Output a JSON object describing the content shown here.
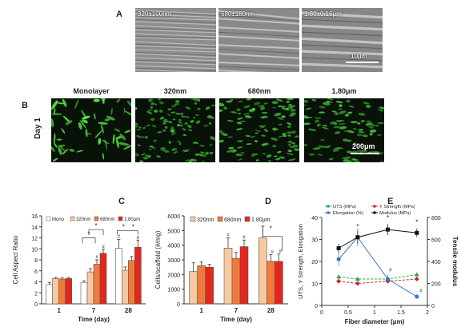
{
  "panels": {
    "A": "A",
    "B": "B",
    "C": "C",
    "D": "D",
    "E": "E"
  },
  "panel_a": {
    "images": [
      {
        "label": "320±100nm"
      },
      {
        "label": "680±180nm"
      },
      {
        "label": "1.80±0.16μm"
      }
    ],
    "scalebar": "10μm"
  },
  "panel_b": {
    "titles": [
      "Monolayer",
      "320nm",
      "680nm",
      "1.80μm"
    ],
    "row_label": "Day 1",
    "scalebar": "200μm"
  },
  "colors": {
    "mono": "#ffffff",
    "nm320": "#f6c9a0",
    "nm680": "#f07a3a",
    "um180": "#e3271d",
    "black": "#222222",
    "uts": "#2fa84f",
    "ystr": "#d62728",
    "elong": "#3a73c0",
    "modulus": "#111111"
  },
  "chart_data": [
    {
      "type": "bar",
      "ylabel": "Cell Aspect Ratio",
      "xlabel": "Time (day)",
      "ylim": [
        0,
        16
      ],
      "yticks": [
        0,
        2,
        4,
        6,
        8,
        10,
        12,
        14,
        16
      ],
      "categories": [
        "1",
        "7",
        "28"
      ],
      "legend": [
        "Mono",
        "320nm",
        "680nm",
        "1.80μm"
      ],
      "series": [
        {
          "name": "Mono",
          "values": [
            3.5,
            3.9,
            10.1
          ]
        },
        {
          "name": "320nm",
          "values": [
            4.6,
            5.8,
            6.1
          ]
        },
        {
          "name": "680nm",
          "values": [
            4.5,
            7.2,
            7.9
          ]
        },
        {
          "name": "1.80μm",
          "values": [
            4.6,
            9.2,
            10.3
          ]
        }
      ],
      "errors": [
        [
          0.4,
          0.3,
          1.6
        ],
        [
          0.2,
          0.6,
          0.6
        ],
        [
          0.2,
          0.8,
          0.7
        ],
        [
          0.2,
          0.7,
          1.3
        ]
      ],
      "marks": [
        "*",
        "*",
        "#",
        "#",
        "#",
        "#",
        "*",
        "*"
      ]
    },
    {
      "type": "bar",
      "ylabel": "Cells/scaffold (#/mg)",
      "xlabel": "Time (day)",
      "ylim": [
        0,
        6000
      ],
      "yticks": [
        0,
        1000,
        2000,
        3000,
        4000,
        5000,
        6000
      ],
      "categories": [
        "1",
        "7",
        "28"
      ],
      "legend": [
        "320nm",
        "680nm",
        "1.80μm"
      ],
      "series": [
        {
          "name": "320nm",
          "values": [
            2200,
            3800,
            4500
          ]
        },
        {
          "name": "680nm",
          "values": [
            2600,
            3100,
            2900
          ]
        },
        {
          "name": "1.80μm",
          "values": [
            2500,
            3900,
            2900
          ]
        }
      ],
      "errors": [
        [
          600,
          700,
          800
        ],
        [
          250,
          400,
          450
        ],
        [
          200,
          450,
          500
        ]
      ],
      "marks": [
        "#",
        "#",
        "#",
        "#",
        "*"
      ]
    },
    {
      "type": "line",
      "xlabel": "Fiber diameter (μm)",
      "ylabel": "UTS, Y Strength, Elongation",
      "y2label": "Tensile modulus",
      "xlim": [
        0,
        2
      ],
      "xticks": [
        0,
        0.5,
        1,
        1.5,
        2
      ],
      "ylim": [
        0,
        40
      ],
      "yticks": [
        0,
        10,
        20,
        30,
        40
      ],
      "y2lim": [
        0,
        800
      ],
      "y2ticks": [
        0,
        200,
        400,
        600,
        800
      ],
      "legend": [
        "UTS (MPa)",
        "Y Strength (MPa)",
        "Elongation (%)",
        "Modulus (MPa)"
      ],
      "series": [
        {
          "name": "UTS (MPa)",
          "axis": "left",
          "x": [
            0.32,
            0.68,
            1.25,
            1.8
          ],
          "y": [
            13,
            12,
            12,
            14
          ],
          "errors": [
            1,
            1,
            1,
            1
          ]
        },
        {
          "name": "Y Strength (MPa)",
          "axis": "left",
          "x": [
            0.32,
            0.68,
            1.25,
            1.8
          ],
          "y": [
            11,
            10,
            11,
            12
          ],
          "errors": [
            1,
            1,
            1,
            1
          ]
        },
        {
          "name": "Elongation (%)",
          "axis": "left",
          "x": [
            0.32,
            0.68,
            1.25,
            1.8
          ],
          "y": [
            21,
            31,
            12,
            4
          ],
          "errors": [
            3,
            4,
            2,
            1
          ]
        },
        {
          "name": "Modulus (MPa)",
          "axis": "right",
          "x": [
            0.32,
            0.68,
            1.25,
            1.8
          ],
          "y": [
            520,
            620,
            690,
            660
          ],
          "errors": [
            40,
            60,
            50,
            40
          ]
        }
      ],
      "marks": [
        "*",
        "*",
        "*",
        "#",
        "#"
      ]
    }
  ]
}
